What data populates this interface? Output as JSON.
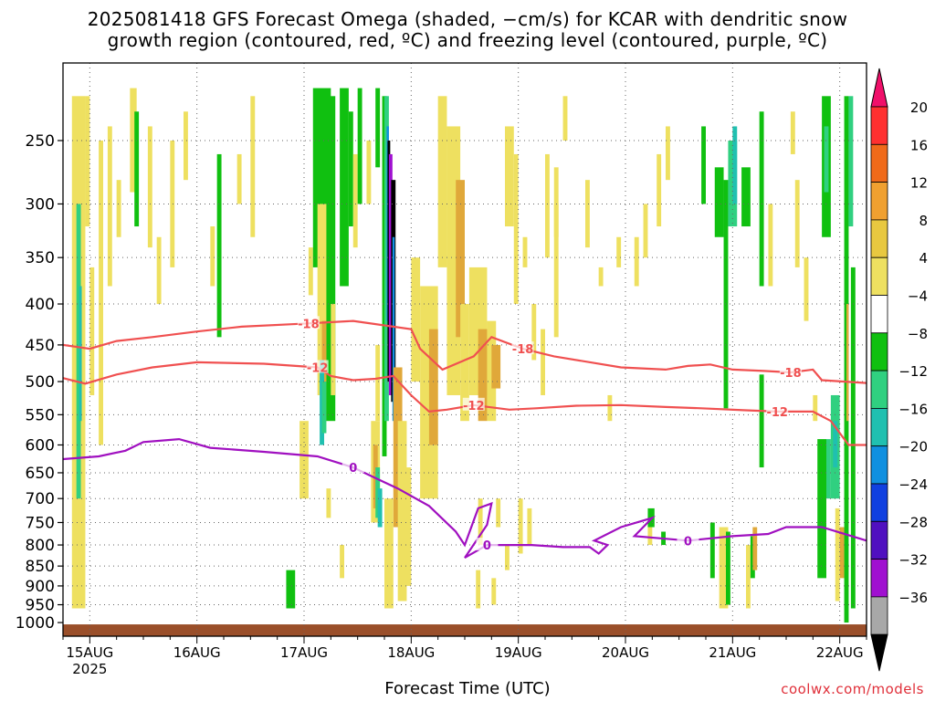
{
  "title_line1": "2025081418 GFS Forecast Omega (shaded, −cm/s) for KCAR with dendritic snow",
  "title_line2": "growth region (contoured, red, ºC) and freezing level (contoured, purple, ºC)",
  "x_axis_label": "Forecast Time (UTC)",
  "credit": "coolwx.com/models",
  "chart_data": {
    "type": "time-height cross section",
    "title": "2025081418 GFS Forecast Omega (shaded, −cm/s) for KCAR with dendritic snow growth region (contoured, red, ºC) and freezing level (contoured, purple, ºC)",
    "xlabel": "Forecast Time (UTC)",
    "ylabel": "",
    "y_scale": "log-pressure, inverted",
    "y_ticks": [
      250,
      300,
      350,
      400,
      450,
      500,
      550,
      600,
      650,
      700,
      750,
      800,
      850,
      900,
      950,
      1000
    ],
    "y_range": [
      1000,
      200
    ],
    "x_ticks": [
      "15AUG",
      "16AUG",
      "17AUG",
      "18AUG",
      "19AUG",
      "20AUG",
      "21AUG",
      "22AUG"
    ],
    "x_year_label": "2025",
    "x_range_hours": [
      0,
      180
    ],
    "grid": true,
    "colorbar": {
      "labels": [
        "20",
        "16",
        "12",
        "8",
        "4",
        "−4",
        "−8",
        "−12",
        "−16",
        "−20",
        "−24",
        "−28",
        "−32",
        "−36"
      ],
      "colors": [
        "#f0106a",
        "#ff3030",
        "#f06a1a",
        "#f0a030",
        "#e8c840",
        "#eee060",
        "#ffffff",
        "#10c010",
        "#30d080",
        "#20c0b0",
        "#1090e0",
        "#1040e0",
        "#5010c0",
        "#a010d0",
        "#a8a8a8",
        "#000000"
      ]
    },
    "contours": [
      {
        "label": "-18",
        "color": "#f05050",
        "points": [
          [
            0,
            450
          ],
          [
            6,
            455
          ],
          [
            12,
            445
          ],
          [
            20,
            440
          ],
          [
            30,
            433
          ],
          [
            40,
            427
          ],
          [
            55,
            423
          ],
          [
            65,
            420
          ],
          [
            78,
            430
          ],
          [
            80,
            455
          ],
          [
            85,
            483
          ],
          [
            92,
            465
          ],
          [
            96,
            440
          ],
          [
            103,
            455
          ],
          [
            110,
            465
          ],
          [
            125,
            480
          ],
          [
            135,
            483
          ],
          [
            140,
            478
          ],
          [
            145,
            476
          ],
          [
            150,
            483
          ],
          [
            157,
            485
          ],
          [
            163,
            487
          ],
          [
            168,
            483
          ],
          [
            170,
            498
          ],
          [
            180,
            502
          ]
        ]
      },
      {
        "label": "-12",
        "color": "#f05050",
        "points": [
          [
            0,
            495
          ],
          [
            5,
            503
          ],
          [
            12,
            490
          ],
          [
            20,
            480
          ],
          [
            30,
            473
          ],
          [
            45,
            475
          ],
          [
            57,
            480
          ],
          [
            60,
            492
          ],
          [
            65,
            498
          ],
          [
            70,
            496
          ],
          [
            74,
            492
          ],
          [
            78,
            520
          ],
          [
            82,
            545
          ],
          [
            86,
            542
          ],
          [
            92,
            535
          ],
          [
            100,
            542
          ],
          [
            106,
            540
          ],
          [
            115,
            536
          ],
          [
            125,
            535
          ],
          [
            135,
            538
          ],
          [
            143,
            540
          ],
          [
            153,
            543
          ],
          [
            160,
            545
          ],
          [
            168,
            545
          ],
          [
            172,
            560
          ],
          [
            176,
            600
          ],
          [
            180,
            600
          ]
        ]
      },
      {
        "label": "0",
        "color": "#a010c0",
        "points": [
          [
            0,
            625
          ],
          [
            8,
            620
          ],
          [
            14,
            610
          ],
          [
            18,
            595
          ],
          [
            26,
            590
          ],
          [
            33,
            605
          ],
          [
            45,
            612
          ],
          [
            57,
            620
          ],
          [
            65,
            640
          ],
          [
            70,
            660
          ],
          [
            75,
            680
          ],
          [
            82,
            715
          ],
          [
            88,
            770
          ],
          [
            90,
            800
          ],
          [
            93,
            720
          ],
          [
            96,
            710
          ],
          [
            95,
            755
          ],
          [
            90,
            830
          ],
          [
            95,
            800
          ],
          [
            105,
            800
          ],
          [
            112,
            805
          ],
          [
            118,
            805
          ],
          [
            120,
            820
          ],
          [
            122,
            800
          ],
          [
            119,
            790
          ],
          [
            125,
            760
          ],
          [
            132,
            740
          ],
          [
            128,
            780
          ],
          [
            140,
            790
          ],
          [
            150,
            780
          ],
          [
            158,
            775
          ],
          [
            162,
            760
          ],
          [
            170,
            760
          ],
          [
            180,
            790
          ]
        ]
      }
    ],
    "bottom_fill": {
      "color": "#9a4f2a",
      "description": "below ground"
    }
  }
}
